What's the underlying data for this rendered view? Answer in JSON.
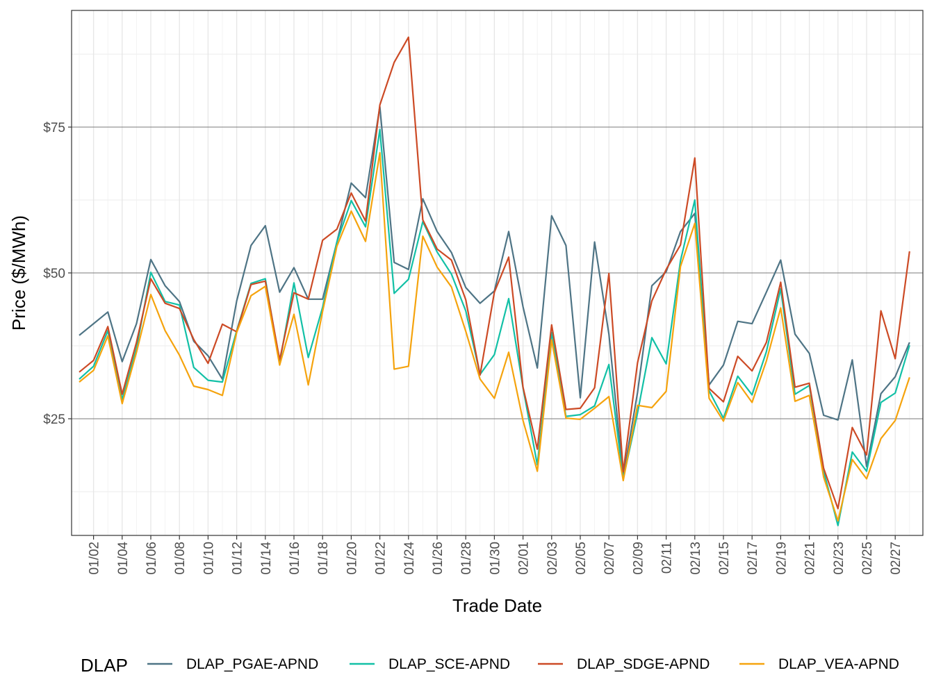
{
  "chart_data": {
    "type": "line",
    "title": "",
    "xlabel": "Trade Date",
    "ylabel": "Price ($/MWh)",
    "ylim": [
      5,
      95
    ],
    "y_ticks": [
      25,
      50,
      75
    ],
    "y_tick_labels": [
      "$25",
      "$50",
      "$75"
    ],
    "x_tick_labels": [
      "01/02",
      "01/04",
      "01/06",
      "01/08",
      "01/10",
      "01/12",
      "01/14",
      "01/16",
      "01/18",
      "01/20",
      "01/22",
      "01/24",
      "01/26",
      "01/28",
      "01/30",
      "02/01",
      "02/03",
      "02/05",
      "02/07",
      "02/09",
      "02/11",
      "02/13",
      "02/15",
      "02/17",
      "02/19",
      "02/21",
      "02/23",
      "02/25",
      "02/27"
    ],
    "x": [
      "01/01",
      "01/02",
      "01/03",
      "01/04",
      "01/05",
      "01/06",
      "01/07",
      "01/08",
      "01/09",
      "01/10",
      "01/11",
      "01/12",
      "01/13",
      "01/14",
      "01/15",
      "01/16",
      "01/17",
      "01/18",
      "01/19",
      "01/20",
      "01/21",
      "01/22",
      "01/23",
      "01/24",
      "01/25",
      "01/26",
      "01/27",
      "01/28",
      "01/29",
      "01/30",
      "01/31",
      "02/01",
      "02/02",
      "02/03",
      "02/04",
      "02/05",
      "02/06",
      "02/07",
      "02/08",
      "02/09",
      "02/10",
      "02/11",
      "02/12",
      "02/13",
      "02/14",
      "02/15",
      "02/16",
      "02/17",
      "02/18",
      "02/19",
      "02/20",
      "02/21",
      "02/22",
      "02/23",
      "02/24",
      "02/25",
      "02/26",
      "02/27",
      "02/28"
    ],
    "grid": true,
    "legend_title": "DLAP",
    "legend_position": "bottom",
    "series": [
      {
        "name": "DLAP_PGAE-APND",
        "color": "#4e7485",
        "values": [
          39.3,
          41.3,
          43.3,
          34.8,
          41.3,
          52.3,
          47.8,
          45.1,
          38.3,
          35.8,
          31.8,
          45.2,
          54.7,
          58.1,
          46.7,
          50.9,
          45.5,
          45.5,
          55.3,
          65.4,
          62.9,
          78.5,
          51.8,
          50.6,
          62.7,
          57.1,
          53.5,
          47.5,
          44.8,
          46.9,
          57.1,
          44.2,
          33.7,
          59.8,
          54.7,
          28.6,
          55.3,
          39.5,
          15.0,
          29.5,
          47.8,
          50.2,
          57.1,
          60.2,
          30.8,
          34.2,
          41.7,
          41.3,
          46.7,
          52.2,
          39.5,
          36.2,
          25.6,
          24.8,
          35.1,
          16.8,
          29.3,
          32.2,
          38.1
        ]
      },
      {
        "name": "DLAP_SCE-APND",
        "color": "#12c0a6",
        "values": [
          31.8,
          34.0,
          40.1,
          28.3,
          37.1,
          50.1,
          45.1,
          44.5,
          33.8,
          31.6,
          31.3,
          40.1,
          48.2,
          49.0,
          34.6,
          48.3,
          35.5,
          44.1,
          55.3,
          62.4,
          57.9,
          74.6,
          46.5,
          48.9,
          58.8,
          53.6,
          49.8,
          43.5,
          32.6,
          36.0,
          45.6,
          30.3,
          17.1,
          39.8,
          25.4,
          25.7,
          27.2,
          34.3,
          14.7,
          26.0,
          38.9,
          34.4,
          52.1,
          62.5,
          29.8,
          25.1,
          32.3,
          29.1,
          36.5,
          47.3,
          29.2,
          30.7,
          16.0,
          6.7,
          19.3,
          16.0,
          27.8,
          29.4,
          37.6
        ]
      },
      {
        "name": "DLAP_SDGE-APND",
        "color": "#cc4a25",
        "values": [
          33.0,
          35.0,
          40.8,
          29.2,
          38.1,
          49.0,
          44.8,
          43.9,
          38.6,
          34.5,
          41.2,
          39.9,
          48.0,
          48.6,
          35.1,
          46.6,
          45.5,
          55.6,
          57.5,
          63.7,
          58.9,
          78.8,
          86.1,
          90.4,
          59.1,
          54.1,
          52.2,
          45.4,
          32.5,
          46.7,
          52.7,
          30.4,
          19.8,
          41.1,
          26.6,
          26.8,
          30.3,
          49.9,
          15.9,
          34.6,
          45.2,
          50.6,
          54.8,
          69.7,
          30.2,
          27.9,
          35.7,
          33.2,
          38.1,
          48.4,
          30.4,
          31.1,
          16.5,
          9.6,
          23.5,
          18.8,
          43.5,
          35.3,
          53.7
        ]
      },
      {
        "name": "DLAP_VEA-APND",
        "color": "#f5a30d",
        "values": [
          31.3,
          33.3,
          39.2,
          27.6,
          36.4,
          46.3,
          40.1,
          35.9,
          30.6,
          30.0,
          29.0,
          39.8,
          46.1,
          47.7,
          34.2,
          42.9,
          30.8,
          43.4,
          54.6,
          60.6,
          55.4,
          70.6,
          33.5,
          34.0,
          56.3,
          51.0,
          47.6,
          40.0,
          31.8,
          28.5,
          36.4,
          24.7,
          16.0,
          38.5,
          25.1,
          24.9,
          26.8,
          28.8,
          14.4,
          27.3,
          26.9,
          29.7,
          51.1,
          58.5,
          28.5,
          24.6,
          31.2,
          27.8,
          34.9,
          44.0,
          28.0,
          29.0,
          15.0,
          7.5,
          18.0,
          14.7,
          21.6,
          24.7,
          32.1
        ]
      }
    ]
  }
}
